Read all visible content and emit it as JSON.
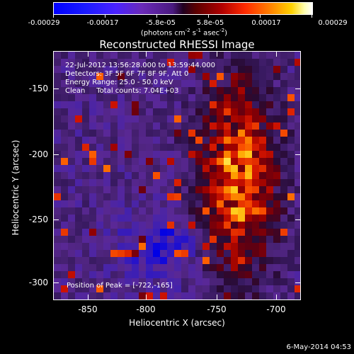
{
  "colorbar": {
    "tick_labels": [
      "-0.00029",
      "-0.00017",
      "-5.8e-05",
      "5.8e-05",
      "0.00017",
      "0.00029"
    ],
    "units_prefix": "(photons cm",
    "units_exp1": "-2",
    "units_mid1": " s",
    "units_exp2": "-1",
    "units_mid2": " asec",
    "units_exp3": "-2",
    "units_suffix": ")"
  },
  "title": "Reconstructed RHESSI Image",
  "info": {
    "line1": "22-Jul-2012 13:56:28.000 to 13:59:44.000",
    "line2": "Detectors: 3F 5F 6F 7F 8F 9F, Att 0",
    "line3": "Energy Range: 25.0 - 50.0 keV",
    "line4": "Clean     Total counts: 7.04E+03"
  },
  "peak": "Position of Peak = [-722,-165]",
  "axes": {
    "x_title": "Heliocentric X (arcsec)",
    "y_title": "Heliocentric Y (arcsec)",
    "x_ticks": [
      "-850",
      "-800",
      "-750",
      "-700"
    ],
    "y_ticks": [
      "-150",
      "-200",
      "-250",
      "-300"
    ]
  },
  "datestamp": "6-May-2014 04:53"
}
